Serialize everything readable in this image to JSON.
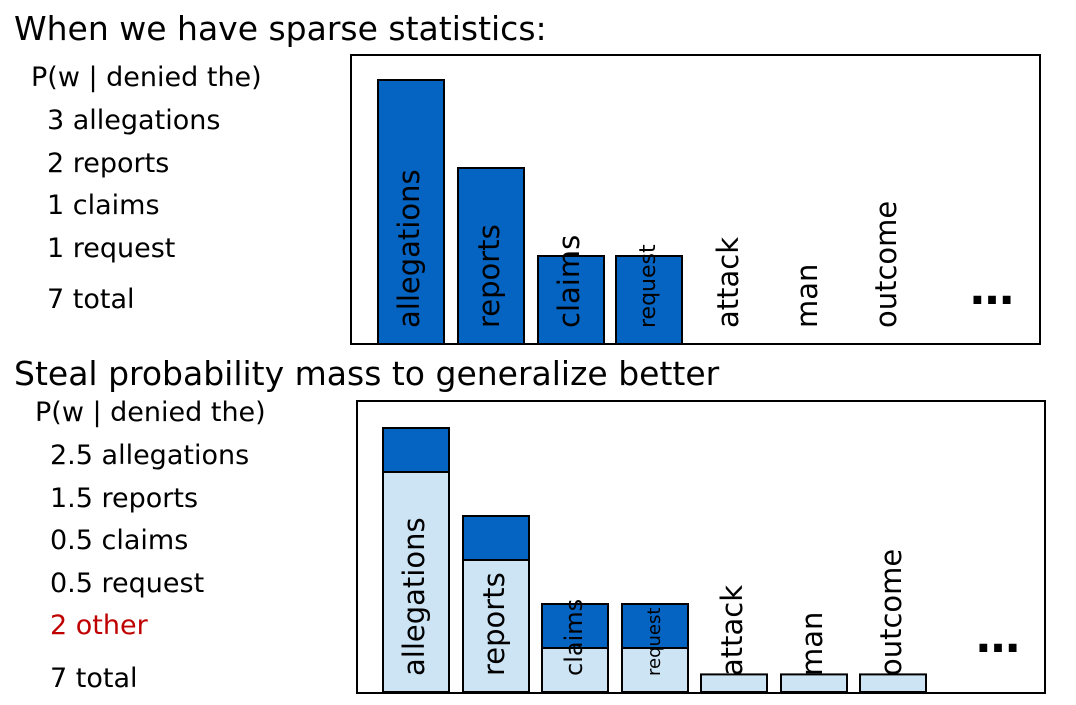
{
  "colors": {
    "bar_dark": "#0563c1",
    "bar_light": "#cde4f5",
    "stroke": "#000000",
    "other_text": "#c00000"
  },
  "panels": [
    {
      "heading": "When we have sparse statistics:",
      "counts_title": "P(w | denied the)",
      "counts": [
        {
          "text": "3 allegations"
        },
        {
          "text": "2 reports"
        },
        {
          "text": "1 claims"
        },
        {
          "text": "1 request"
        },
        {
          "text": "7 total"
        }
      ],
      "chart_data": {
        "type": "bar",
        "categories": [
          "allegations",
          "reports",
          "claims",
          "request",
          "attack",
          "man",
          "outcome"
        ],
        "values": [
          3,
          2,
          1,
          1,
          0,
          0,
          0
        ],
        "ellipsis": "…"
      }
    },
    {
      "heading": "Steal probability mass to generalize better",
      "counts_title": "P(w | denied the)",
      "counts": [
        {
          "text": "2.5 allegations"
        },
        {
          "text": "1.5 reports"
        },
        {
          "text": "0.5 claims"
        },
        {
          "text": "0.5 request"
        },
        {
          "text": "2 other",
          "highlight": true
        },
        {
          "text": "7 total"
        }
      ],
      "chart_data": {
        "type": "bar",
        "stacked": true,
        "categories": [
          "allegations",
          "reports",
          "claims",
          "request",
          "attack",
          "man",
          "outcome"
        ],
        "series": [
          {
            "values": [
              2.5,
              1.5,
              0.5,
              0.5,
              0.2,
              0.2,
              0.2
            ]
          },
          {
            "values": [
              0.5,
              0.5,
              0.5,
              0.5,
              0,
              0,
              0
            ]
          }
        ],
        "ellipsis": "…"
      }
    }
  ]
}
